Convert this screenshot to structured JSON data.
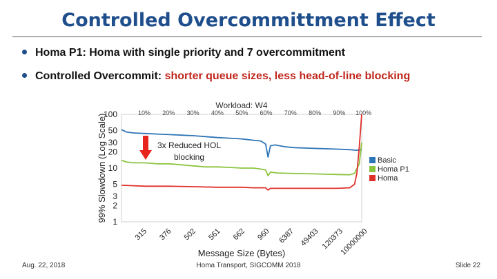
{
  "slide": {
    "title": "Controlled Overcommittment Effect",
    "bullets": [
      {
        "bold": "Homa P1: Homa with single priority and 7 overcommitment",
        "highlight": ""
      },
      {
        "bold": "Controlled Overcommit: ",
        "highlight": "shorter queue sizes, less head-of-line blocking"
      }
    ],
    "footer": {
      "left": "Aug. 22, 2018",
      "center": "Homa Transport, SIGCOMM 2018",
      "right": "Slide 22"
    },
    "colors": {
      "title": "#1f4e8c",
      "highlight": "#c0271d",
      "arrow": "#e8251c"
    }
  },
  "chart_data": {
    "type": "line",
    "title": "Workload: W4",
    "xlabel": "Message Size (Bytes)",
    "ylabel": "99% Slowdown (Log Scale)",
    "y_scale": "log",
    "ylim": [
      1,
      100
    ],
    "y_ticks": [
      1,
      2,
      3,
      5,
      10,
      20,
      30,
      50,
      100
    ],
    "x_percentiles": [
      "10%",
      "20%",
      "30%",
      "40%",
      "50%",
      "60%",
      "70%",
      "80%",
      "90%",
      "100%"
    ],
    "x_tick_labels": [
      "315",
      "376",
      "502",
      "561",
      "662",
      "960",
      "6387",
      "49403",
      "120373",
      "10000000"
    ],
    "x_range": [
      0,
      100
    ],
    "legend_position": "right",
    "annotation": {
      "text_line1": "3x Reduced HOL",
      "text_line2": "blocking"
    },
    "series": [
      {
        "name": "Basic",
        "color": "#2e75b6",
        "x": [
          0,
          2,
          5,
          10,
          15,
          20,
          25,
          30,
          35,
          40,
          45,
          50,
          55,
          58,
          60,
          61,
          62,
          64,
          68,
          72,
          78,
          84,
          90,
          95,
          98,
          100
        ],
        "values": [
          52,
          47,
          45,
          44,
          43,
          42,
          41,
          40,
          38.5,
          37,
          36,
          35,
          33,
          32,
          28,
          16,
          26,
          27,
          25,
          24,
          23.5,
          23,
          22.5,
          22,
          21.5,
          22
        ]
      },
      {
        "name": "Homa P1",
        "color": "#8bc43f",
        "x": [
          0,
          2,
          5,
          10,
          15,
          20,
          25,
          30,
          35,
          40,
          45,
          50,
          55,
          58,
          60,
          61,
          62,
          65,
          70,
          75,
          80,
          85,
          90,
          95,
          97,
          99,
          100
        ],
        "values": [
          14,
          13,
          12.5,
          12.5,
          12,
          12,
          11.5,
          11,
          10.5,
          10.5,
          10.3,
          10,
          10,
          9.6,
          9.2,
          7.2,
          8.4,
          8.1,
          8,
          7.9,
          7.8,
          7.7,
          7.6,
          7.5,
          8,
          12,
          30
        ]
      },
      {
        "name": "Homa",
        "color": "#e0302a",
        "x": [
          0,
          5,
          10,
          20,
          30,
          40,
          50,
          55,
          60,
          61,
          62,
          70,
          80,
          90,
          95,
          97,
          98,
          99,
          100
        ],
        "values": [
          4.8,
          4.7,
          4.6,
          4.6,
          4.5,
          4.4,
          4.4,
          4.3,
          4.3,
          3.9,
          4.2,
          4.2,
          4.2,
          4.2,
          4.3,
          5,
          8,
          25,
          100
        ]
      }
    ]
  }
}
